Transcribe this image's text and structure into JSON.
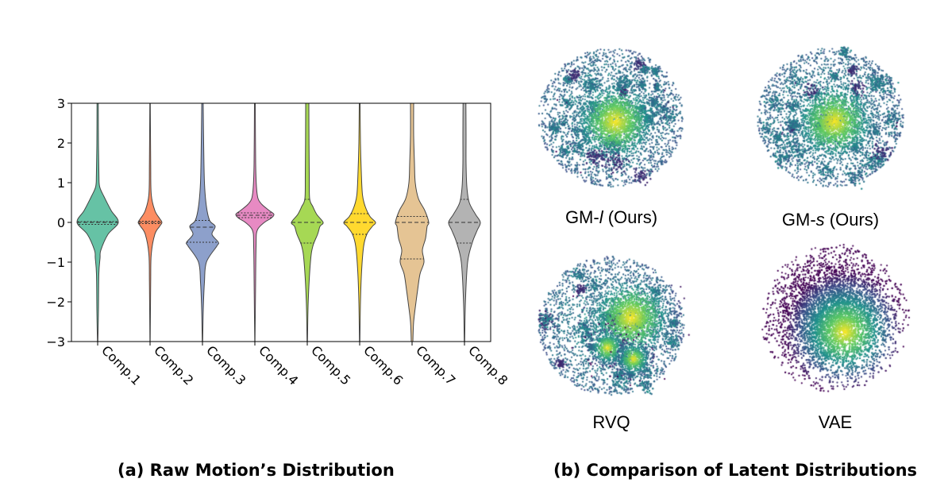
{
  "captions": {
    "a": "(a) Raw Motion’s Distribution",
    "b": "(b) Comparison of Latent Distributions"
  },
  "chart_data": [
    {
      "type": "violin",
      "title": "",
      "xlabel": "",
      "ylabel": "",
      "ylim": [
        -3,
        3
      ],
      "yticks": [
        "−3",
        "−2",
        "−1",
        "0",
        "1",
        "2",
        "3"
      ],
      "grid": false,
      "categories": [
        "Comp.1",
        "Comp.2",
        "Comp.3",
        "Comp.4",
        "Comp.5",
        "Comp.6",
        "Comp.7",
        "Comp.8"
      ],
      "colors": [
        "#66c2a5",
        "#fc8d62",
        "#8da0cb",
        "#e78ac3",
        "#a6d854",
        "#ffd92f",
        "#e5c494",
        "#b3b3b3"
      ],
      "series": [
        {
          "category": "Comp.1",
          "q1": -0.05,
          "median": 0.0,
          "q3": 0.02,
          "max_halfwidth_at": 0.0
        },
        {
          "category": "Comp.2",
          "q1": -0.03,
          "median": 0.0,
          "q3": 0.03,
          "max_halfwidth_at": 0.0
        },
        {
          "category": "Comp.3",
          "q1": -0.5,
          "median": -0.12,
          "q3": 0.05,
          "max_halfwidth_at": -0.05
        },
        {
          "category": "Comp.4",
          "q1": 0.12,
          "median": 0.18,
          "q3": 0.24,
          "max_halfwidth_at": 0.18
        },
        {
          "category": "Comp.5",
          "q1": -0.52,
          "median": 0.0,
          "q3": 0.58,
          "max_halfwidth_at": 0.0
        },
        {
          "category": "Comp.6",
          "q1": -0.3,
          "median": 0.0,
          "q3": 0.22,
          "max_halfwidth_at": 0.0
        },
        {
          "category": "Comp.7",
          "q1": -0.92,
          "median": 0.0,
          "q3": 0.15,
          "max_halfwidth_at": 0.0
        },
        {
          "category": "Comp.8",
          "q1": -0.52,
          "median": 0.0,
          "q3": 0.58,
          "max_halfwidth_at": 0.0
        }
      ]
    },
    {
      "type": "scatter",
      "panels": [
        {
          "label_prefix": "GM-",
          "label_var": "l",
          "label_suffix": " (Ours)",
          "style": "clusters"
        },
        {
          "label_prefix": "GM-",
          "label_var": "s",
          "label_suffix": " (Ours)",
          "style": "clusters"
        },
        {
          "label_prefix": "RVQ",
          "label_var": "",
          "label_suffix": "",
          "style": "mixed"
        },
        {
          "label_prefix": "VAE",
          "label_var": "",
          "label_suffix": "",
          "style": "gaussian"
        }
      ]
    }
  ]
}
